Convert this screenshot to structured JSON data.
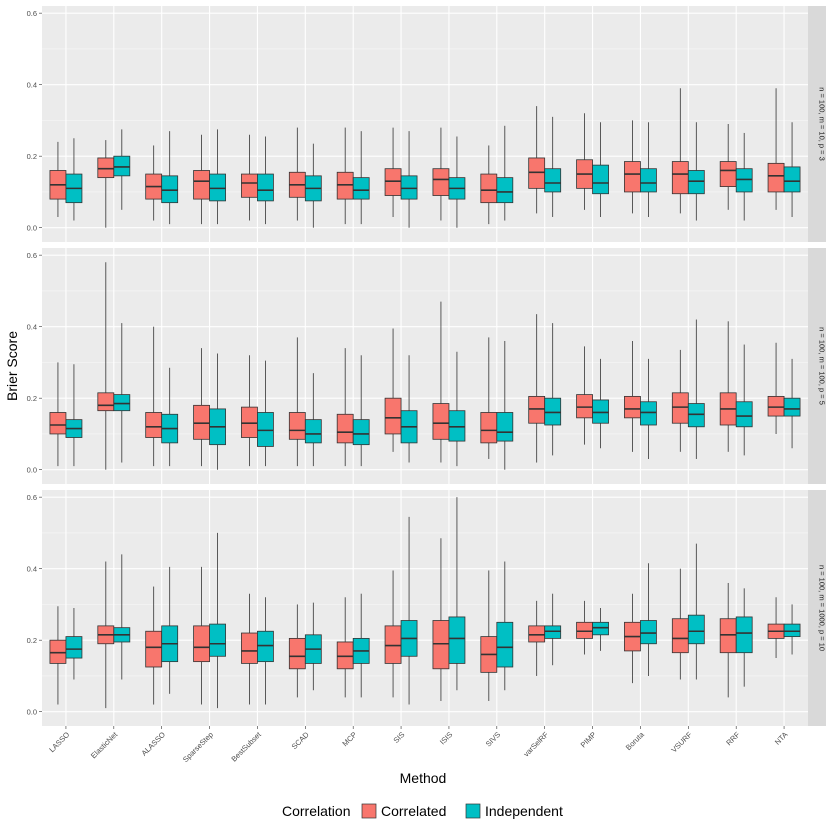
{
  "chart_data": {
    "type": "boxplot",
    "ylabel": "Brier Score",
    "xlabel": "Method",
    "ylim": [
      0,
      0.6
    ],
    "yticks": [
      "0.0",
      "0.2",
      "0.4",
      "0.6"
    ],
    "methods": [
      "LASSO",
      "ElasticNet",
      "ALASSO",
      "SparseStep",
      "BestSubset",
      "SCAD",
      "MCP",
      "SIS",
      "ISIS",
      "SIVS",
      "varSelRF",
      "PIMP",
      "Boruta",
      "VSURF",
      "RRF",
      "NTA"
    ],
    "legend": {
      "title": "Correlation",
      "entries": [
        {
          "name": "Correlated",
          "color": "#F8766D"
        },
        {
          "name": "Independent",
          "color": "#00BFC4"
        }
      ]
    },
    "panels": [
      {
        "strip": "n = 100, m = 10, p = 3",
        "correlated": [
          [
            0.03,
            0.08,
            0.12,
            0.16,
            0.24
          ],
          [
            0.0,
            0.14,
            0.165,
            0.195,
            0.245
          ],
          [
            0.02,
            0.08,
            0.115,
            0.15,
            0.23
          ],
          [
            0.01,
            0.08,
            0.13,
            0.16,
            0.26
          ],
          [
            0.02,
            0.085,
            0.125,
            0.15,
            0.26
          ],
          [
            0.02,
            0.085,
            0.12,
            0.155,
            0.28
          ],
          [
            0.01,
            0.08,
            0.12,
            0.155,
            0.28
          ],
          [
            0.03,
            0.09,
            0.13,
            0.165,
            0.28
          ],
          [
            0.02,
            0.09,
            0.135,
            0.165,
            0.28
          ],
          [
            0.01,
            0.07,
            0.105,
            0.15,
            0.23
          ],
          [
            0.04,
            0.11,
            0.155,
            0.195,
            0.34
          ],
          [
            0.05,
            0.11,
            0.15,
            0.19,
            0.32
          ],
          [
            0.04,
            0.1,
            0.15,
            0.185,
            0.3
          ],
          [
            0.04,
            0.095,
            0.15,
            0.185,
            0.39
          ],
          [
            0.05,
            0.115,
            0.16,
            0.185,
            0.29
          ],
          [
            0.05,
            0.1,
            0.145,
            0.18,
            0.39
          ]
        ],
        "independent": [
          [
            0.02,
            0.07,
            0.11,
            0.15,
            0.25
          ],
          [
            0.05,
            0.145,
            0.17,
            0.2,
            0.275
          ],
          [
            0.01,
            0.07,
            0.105,
            0.145,
            0.27
          ],
          [
            0.01,
            0.075,
            0.11,
            0.15,
            0.275
          ],
          [
            0.01,
            0.075,
            0.105,
            0.15,
            0.255
          ],
          [
            0.0,
            0.075,
            0.11,
            0.145,
            0.235
          ],
          [
            0.01,
            0.08,
            0.105,
            0.14,
            0.27
          ],
          [
            0.0,
            0.08,
            0.11,
            0.145,
            0.27
          ],
          [
            0.0,
            0.08,
            0.11,
            0.14,
            0.255
          ],
          [
            0.02,
            0.07,
            0.1,
            0.14,
            0.285
          ],
          [
            0.03,
            0.1,
            0.125,
            0.165,
            0.31
          ],
          [
            0.03,
            0.095,
            0.125,
            0.175,
            0.295
          ],
          [
            0.03,
            0.1,
            0.125,
            0.165,
            0.295
          ],
          [
            0.02,
            0.095,
            0.13,
            0.16,
            0.295
          ],
          [
            0.02,
            0.1,
            0.135,
            0.165,
            0.265
          ],
          [
            0.03,
            0.1,
            0.13,
            0.17,
            0.295
          ]
        ]
      },
      {
        "strip": "n = 100, m = 100, p = 5",
        "correlated": [
          [
            0.01,
            0.1,
            0.125,
            0.16,
            0.3
          ],
          [
            0.0,
            0.165,
            0.18,
            0.215,
            0.58
          ],
          [
            0.01,
            0.09,
            0.12,
            0.16,
            0.4
          ],
          [
            0.01,
            0.085,
            0.13,
            0.18,
            0.34
          ],
          [
            0.01,
            0.09,
            0.13,
            0.175,
            0.32
          ],
          [
            0.01,
            0.085,
            0.11,
            0.16,
            0.37
          ],
          [
            0.01,
            0.075,
            0.105,
            0.155,
            0.34
          ],
          [
            0.05,
            0.1,
            0.145,
            0.2,
            0.395
          ],
          [
            0.02,
            0.085,
            0.13,
            0.185,
            0.47
          ],
          [
            0.03,
            0.075,
            0.11,
            0.16,
            0.37
          ],
          [
            0.02,
            0.13,
            0.17,
            0.205,
            0.435
          ],
          [
            0.07,
            0.145,
            0.175,
            0.21,
            0.345
          ],
          [
            0.05,
            0.145,
            0.17,
            0.205,
            0.36
          ],
          [
            0.05,
            0.13,
            0.175,
            0.215,
            0.335
          ],
          [
            0.05,
            0.125,
            0.17,
            0.215,
            0.415
          ],
          [
            0.1,
            0.15,
            0.175,
            0.205,
            0.355
          ]
        ],
        "independent": [
          [
            0.01,
            0.09,
            0.115,
            0.14,
            0.295
          ],
          [
            0.02,
            0.165,
            0.185,
            0.21,
            0.41
          ],
          [
            0.01,
            0.075,
            0.115,
            0.155,
            0.285
          ],
          [
            0.0,
            0.07,
            0.12,
            0.17,
            0.325
          ],
          [
            0.01,
            0.065,
            0.11,
            0.16,
            0.305
          ],
          [
            0.01,
            0.075,
            0.1,
            0.14,
            0.27
          ],
          [
            0.01,
            0.07,
            0.1,
            0.14,
            0.32
          ],
          [
            0.02,
            0.075,
            0.12,
            0.165,
            0.32
          ],
          [
            0.01,
            0.08,
            0.12,
            0.165,
            0.33
          ],
          [
            0.0,
            0.08,
            0.105,
            0.16,
            0.36
          ],
          [
            0.04,
            0.125,
            0.16,
            0.2,
            0.41
          ],
          [
            0.06,
            0.13,
            0.16,
            0.195,
            0.31
          ],
          [
            0.03,
            0.125,
            0.16,
            0.19,
            0.31
          ],
          [
            0.03,
            0.12,
            0.155,
            0.185,
            0.42
          ],
          [
            0.04,
            0.12,
            0.15,
            0.19,
            0.35
          ],
          [
            0.06,
            0.15,
            0.17,
            0.2,
            0.31
          ]
        ]
      },
      {
        "strip": "n = 100, m = 1000, p = 10",
        "correlated": [
          [
            0.02,
            0.135,
            0.165,
            0.2,
            0.295
          ],
          [
            0.01,
            0.19,
            0.215,
            0.24,
            0.42
          ],
          [
            0.02,
            0.125,
            0.18,
            0.225,
            0.35
          ],
          [
            0.02,
            0.14,
            0.18,
            0.24,
            0.405
          ],
          [
            0.02,
            0.135,
            0.17,
            0.22,
            0.33
          ],
          [
            0.04,
            0.12,
            0.155,
            0.205,
            0.3
          ],
          [
            0.04,
            0.12,
            0.155,
            0.195,
            0.32
          ],
          [
            0.04,
            0.135,
            0.185,
            0.24,
            0.395
          ],
          [
            0.03,
            0.12,
            0.19,
            0.255,
            0.485
          ],
          [
            0.03,
            0.11,
            0.16,
            0.21,
            0.395
          ],
          [
            0.1,
            0.195,
            0.215,
            0.24,
            0.31
          ],
          [
            0.16,
            0.205,
            0.225,
            0.25,
            0.31
          ],
          [
            0.08,
            0.17,
            0.21,
            0.25,
            0.33
          ],
          [
            0.09,
            0.165,
            0.205,
            0.26,
            0.4
          ],
          [
            0.04,
            0.165,
            0.215,
            0.26,
            0.36
          ],
          [
            0.15,
            0.205,
            0.225,
            0.245,
            0.32
          ]
        ],
        "independent": [
          [
            0.09,
            0.15,
            0.175,
            0.21,
            0.29
          ],
          [
            0.09,
            0.195,
            0.215,
            0.235,
            0.44
          ],
          [
            0.05,
            0.14,
            0.19,
            0.24,
            0.405
          ],
          [
            0.01,
            0.155,
            0.19,
            0.245,
            0.5
          ],
          [
            0.02,
            0.14,
            0.185,
            0.225,
            0.32
          ],
          [
            0.06,
            0.135,
            0.175,
            0.215,
            0.305
          ],
          [
            0.04,
            0.135,
            0.17,
            0.205,
            0.33
          ],
          [
            0.02,
            0.155,
            0.205,
            0.255,
            0.545
          ],
          [
            0.06,
            0.135,
            0.205,
            0.265,
            0.6
          ],
          [
            0.06,
            0.125,
            0.18,
            0.25,
            0.42
          ],
          [
            0.13,
            0.205,
            0.225,
            0.24,
            0.33
          ],
          [
            0.17,
            0.215,
            0.235,
            0.25,
            0.29
          ],
          [
            0.1,
            0.19,
            0.22,
            0.255,
            0.415
          ],
          [
            0.09,
            0.19,
            0.225,
            0.27,
            0.47
          ],
          [
            0.07,
            0.165,
            0.22,
            0.265,
            0.345
          ],
          [
            0.16,
            0.21,
            0.225,
            0.245,
            0.3
          ]
        ]
      }
    ]
  }
}
